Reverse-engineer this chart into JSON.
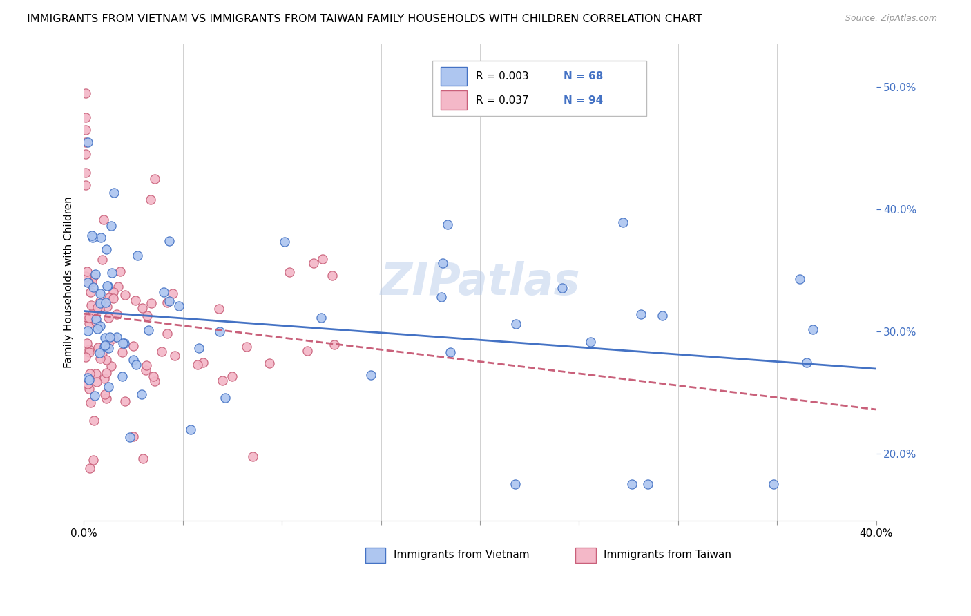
{
  "title": "IMMIGRANTS FROM VIETNAM VS IMMIGRANTS FROM TAIWAN FAMILY HOUSEHOLDS WITH CHILDREN CORRELATION CHART",
  "source": "Source: ZipAtlas.com",
  "ylabel": "Family Households with Children",
  "xlim": [
    0.0,
    0.4
  ],
  "ylim": [
    0.145,
    0.535
  ],
  "xtick_positions": [
    0.0,
    0.05,
    0.1,
    0.15,
    0.2,
    0.25,
    0.3,
    0.35,
    0.4
  ],
  "xtick_labels": [
    "0.0%",
    "",
    "",
    "",
    "",
    "",
    "",
    "",
    "40.0%"
  ],
  "ytick_positions": [
    0.2,
    0.3,
    0.4,
    0.5
  ],
  "ytick_labels": [
    "20.0%",
    "30.0%",
    "40.0%",
    "50.0%"
  ],
  "legend_R_vietnam": "0.003",
  "legend_N_vietnam": "68",
  "legend_R_taiwan": "0.037",
  "legend_N_taiwan": "94",
  "vietnam_fill": "#aec6f0",
  "vietnam_edge": "#4472c4",
  "taiwan_fill": "#f4b8c8",
  "taiwan_edge": "#c9607a",
  "line_vietnam_color": "#4472c4",
  "line_taiwan_color": "#c9607a",
  "watermark": "ZIPatlas",
  "grid_color": "#d0d0d0",
  "background": "#ffffff"
}
